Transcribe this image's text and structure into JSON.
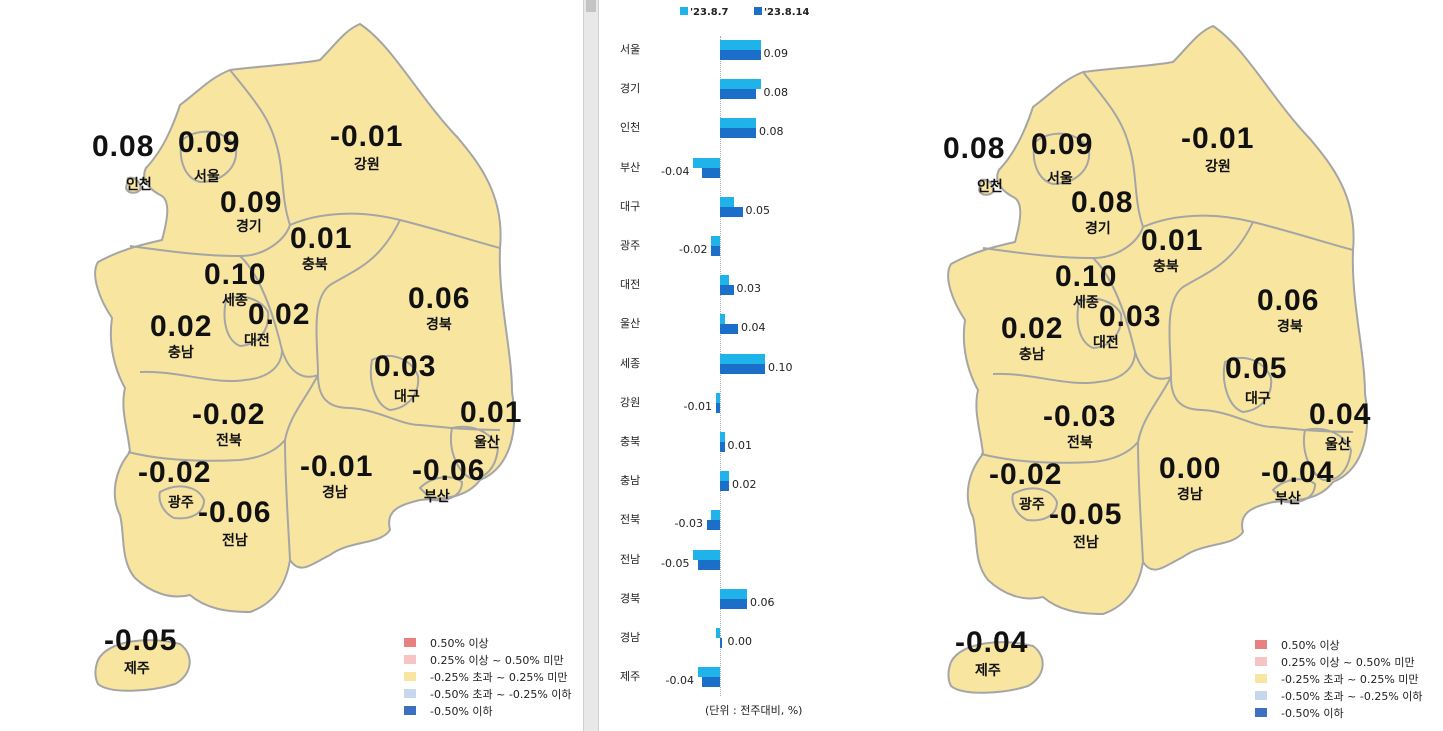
{
  "colors": {
    "map_fill": "#f8e6a0",
    "map_stroke": "#a5a5a5",
    "bar_prev": "#1fb3ea",
    "bar_curr": "#1b6fc8",
    "legend": [
      "#e98080",
      "#f7c4c4",
      "#f8e6a0",
      "#c6d7ee",
      "#3e6fc1"
    ]
  },
  "left_map": {
    "regions": {
      "incheon": {
        "name": "인천",
        "value": "0.08"
      },
      "seoul": {
        "name": "서울",
        "value": "0.09"
      },
      "gyeonggi": {
        "name": "경기",
        "value": "0.09"
      },
      "gangwon": {
        "name": "강원",
        "value": "-0.01"
      },
      "chungbuk": {
        "name": "충북",
        "value": "0.01"
      },
      "sejong": {
        "name": "세종",
        "value": "0.10"
      },
      "daejeon": {
        "name": "대전",
        "value": "0.02"
      },
      "chungnam": {
        "name": "충남",
        "value": "0.02"
      },
      "gyeongbuk": {
        "name": "경북",
        "value": "0.06"
      },
      "daegu": {
        "name": "대구",
        "value": "0.03"
      },
      "ulsan": {
        "name": "울산",
        "value": "0.01"
      },
      "jeonbuk": {
        "name": "전북",
        "value": "-0.02"
      },
      "gwangju": {
        "name": "광주",
        "value": "-0.02"
      },
      "jeonnam": {
        "name": "전남",
        "value": "-0.06"
      },
      "gyeongnam": {
        "name": "경남",
        "value": "-0.01"
      },
      "busan": {
        "name": "부산",
        "value": "-0.06"
      },
      "jeju": {
        "name": "제주",
        "value": "-0.05"
      }
    },
    "legend": [
      "0.50% 이상",
      "0.25% 이상 ~ 0.50% 미만",
      "-0.25% 초과 ~ 0.25% 미만",
      "-0.50% 초과 ~ -0.25% 이하",
      "-0.50% 이하"
    ]
  },
  "right_map": {
    "regions": {
      "incheon": {
        "name": "인천",
        "value": "0.08"
      },
      "seoul": {
        "name": "서울",
        "value": "0.09"
      },
      "gyeonggi": {
        "name": "경기",
        "value": "0.08"
      },
      "gangwon": {
        "name": "강원",
        "value": "-0.01"
      },
      "chungbuk": {
        "name": "충북",
        "value": "0.01"
      },
      "sejong": {
        "name": "세종",
        "value": "0.10"
      },
      "daejeon": {
        "name": "대전",
        "value": "0.03"
      },
      "chungnam": {
        "name": "충남",
        "value": "0.02"
      },
      "gyeongbuk": {
        "name": "경북",
        "value": "0.06"
      },
      "daegu": {
        "name": "대구",
        "value": "0.05"
      },
      "ulsan": {
        "name": "울산",
        "value": "0.04"
      },
      "jeonbuk": {
        "name": "전북",
        "value": "-0.03"
      },
      "gwangju": {
        "name": "광주",
        "value": "-0.02"
      },
      "jeonnam": {
        "name": "전남",
        "value": "-0.05"
      },
      "gyeongnam": {
        "name": "경남",
        "value": "0.00"
      },
      "busan": {
        "name": "부산",
        "value": "-0.04"
      },
      "jeju": {
        "name": "제주",
        "value": "-0.04"
      }
    },
    "legend": [
      "0.50% 이상",
      "0.25% 이상 ~ 0.50% 미만",
      "-0.25% 초과 ~ 0.25% 미만",
      "-0.50% 초과 ~ -0.25% 이하",
      "-0.50% 이하"
    ]
  },
  "chart_data": {
    "type": "bar",
    "orientation": "horizontal",
    "categories": [
      "서울",
      "경기",
      "인천",
      "부산",
      "대구",
      "광주",
      "대전",
      "울산",
      "세종",
      "강원",
      "충북",
      "충남",
      "전북",
      "전남",
      "경북",
      "경남",
      "제주"
    ],
    "series": [
      {
        "name": "'23.8.7",
        "values": [
          0.09,
          0.09,
          0.08,
          -0.06,
          0.03,
          -0.02,
          0.02,
          0.01,
          0.1,
          -0.01,
          0.01,
          0.02,
          -0.02,
          -0.06,
          0.06,
          -0.01,
          -0.05
        ]
      },
      {
        "name": "'23.8.14",
        "values": [
          0.09,
          0.08,
          0.08,
          -0.04,
          0.05,
          -0.02,
          0.03,
          0.04,
          0.1,
          -0.01,
          0.01,
          0.02,
          -0.03,
          -0.05,
          0.06,
          0.0,
          -0.04
        ]
      }
    ],
    "value_labels": [
      "0.09",
      "0.08",
      "0.08",
      "-0.04",
      "0.05",
      "-0.02",
      "0.03",
      "0.04",
      "0.10",
      "-0.01",
      "0.01",
      "0.02",
      "-0.03",
      "-0.05",
      "0.06",
      "0.00",
      "-0.04"
    ],
    "xlim": [
      -0.07,
      0.11
    ],
    "unit_note": "(단위 : 전주대비, %)"
  }
}
